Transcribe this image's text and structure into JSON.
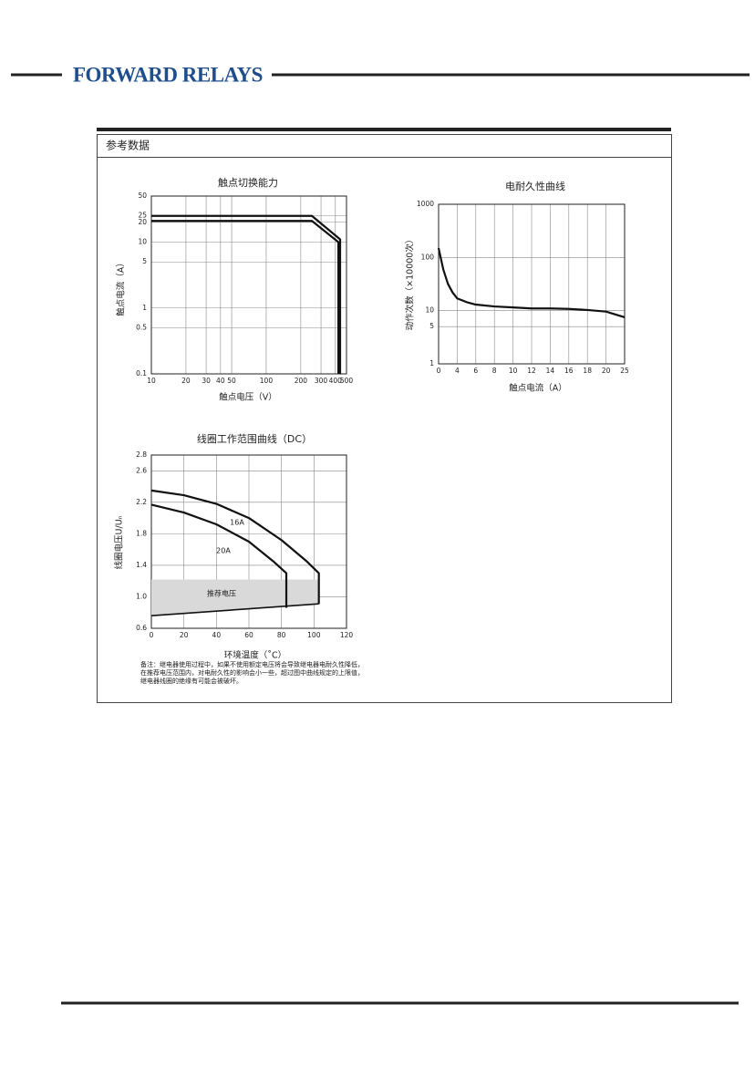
{
  "header": {
    "brand": "FORWARD RELAYS"
  },
  "section": {
    "title": "参考数据",
    "note": "备注：继电器使用过程中，如果不使用额定电压将会导致继电器电耐久性降低，在推荐电压范围内，对电耐久性的影响会小一些，超过图中曲线规定的上限值，继电器线圈的绝缘有可能会被破坏。"
  },
  "chart_data": [
    {
      "type": "line",
      "title": "触点切换能力",
      "xlabel": "触点电压（V）",
      "ylabel": "触点电流（A）",
      "xscale": "log",
      "yscale": "log",
      "xlim": [
        10,
        500
      ],
      "ylim": [
        0.1,
        50
      ],
      "xticks": [
        10,
        20,
        30,
        40,
        50,
        100,
        200,
        300,
        400,
        500
      ],
      "yticks": [
        0.1,
        0.5,
        1,
        5,
        10,
        20,
        25,
        50
      ],
      "grid": true,
      "series": [
        {
          "color": "#111111",
          "x": [
            10,
            250,
            440,
            440
          ],
          "values": [
            25,
            25,
            11,
            0.1
          ]
        },
        {
          "color": "#111111",
          "x": [
            10,
            250,
            425,
            425
          ],
          "values": [
            21,
            21,
            10,
            0.1
          ]
        }
      ]
    },
    {
      "type": "line",
      "title": "电耐久性曲线",
      "xlabel": "触点电流（A）",
      "ylabel": "动作次数（×10000次）",
      "yscale": "log",
      "xtick_spacing": "even",
      "xlim": [
        0,
        25
      ],
      "ylim": [
        1,
        1000
      ],
      "xticks": [
        0,
        4,
        6,
        8,
        10,
        12,
        14,
        16,
        18,
        20,
        25
      ],
      "yticks": [
        1,
        5,
        10,
        100,
        1000
      ],
      "grid": true,
      "series": [
        {
          "color": "#111111",
          "x": [
            0,
            1,
            2,
            3,
            4,
            5,
            6,
            8,
            10,
            12,
            14,
            16,
            18,
            20,
            25
          ],
          "values": [
            150,
            60,
            32,
            22,
            17,
            14.5,
            13,
            12,
            11.5,
            11,
            11,
            10.8,
            10.3,
            9.6,
            7.5
          ]
        }
      ]
    },
    {
      "type": "line",
      "title": "线圈工作范围曲线（DC）",
      "xlabel": "环境温度（˚C）",
      "ylabel": "线圈电压U/Uₙ",
      "xlim": [
        0,
        120
      ],
      "ylim": [
        0.6,
        2.8
      ],
      "xticks": [
        0,
        20,
        40,
        60,
        80,
        100,
        120
      ],
      "yticks": [
        0.6,
        {
          "value": 1,
          "label": "1.0"
        },
        1.4,
        1.8,
        2.2,
        2.6,
        2.8
      ],
      "grid": true,
      "series": [
        {
          "name": "16A",
          "color": "#111111",
          "x": [
            0,
            20,
            40,
            60,
            80,
            95,
            103,
            103
          ],
          "values": [
            2.35,
            2.29,
            2.18,
            2.0,
            1.72,
            1.46,
            1.3,
            0.91
          ]
        },
        {
          "name": "20A",
          "color": "#111111",
          "x": [
            0,
            20,
            40,
            60,
            75,
            83,
            83
          ],
          "values": [
            2.17,
            2.07,
            1.92,
            1.7,
            1.45,
            1.3,
            0.86
          ]
        }
      ],
      "region": {
        "label": "推荐电压",
        "color": "#d9d9d9",
        "x": [
          0,
          103
        ],
        "upper": [
          1.22,
          1.22
        ],
        "lower": [
          0.76,
          0.91
        ]
      }
    }
  ]
}
